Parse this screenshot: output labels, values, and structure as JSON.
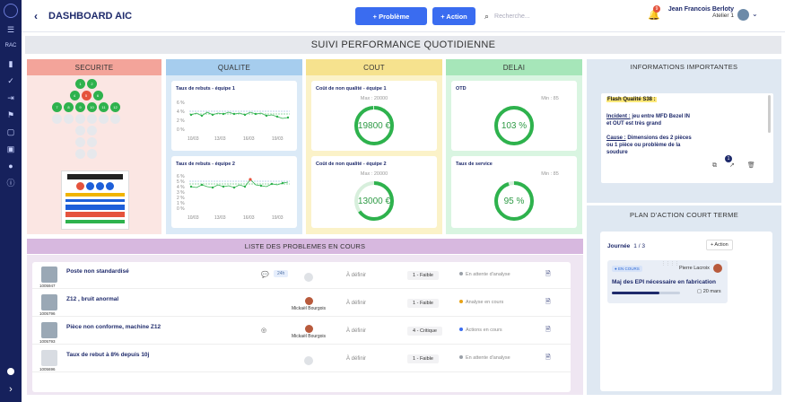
{
  "sidebar": {
    "items": [
      "menu",
      "RAC",
      "chart",
      "check",
      "login",
      "grid",
      "flag",
      "calendar",
      "calendar-check",
      "user",
      "info"
    ]
  },
  "topbar": {
    "back": "‹",
    "title": "DASHBOARD AIC",
    "btn_probleme": "+ Problème",
    "btn_action": "+ Action",
    "search_placeholder": "Recherche...",
    "notif_count": "9",
    "user_name": "Jean Francois Berloty",
    "user_sub": "Atelier 1"
  },
  "header": "SUIVI PERFORMANCE QUOTIDIENNE",
  "columns": {
    "securite": "SECURITE",
    "qualite": "QUALITE",
    "cout": "COUT",
    "delai": "DELAI"
  },
  "securite": {
    "grid_rows": [
      [
        "1",
        "2"
      ],
      [
        "4",
        "5",
        "6"
      ],
      [
        "7",
        "8",
        "9",
        "10",
        "11",
        "12"
      ],
      [
        "14",
        "15",
        "16",
        "17",
        "18",
        "19"
      ],
      [
        "21",
        "22"
      ],
      [
        "25",
        "26"
      ],
      [
        "28",
        "29"
      ]
    ]
  },
  "qualite": {
    "cards": [
      {
        "title": "Taux de rebuts - équipe 1",
        "yticks": [
          "6 %",
          "4 %",
          "2 %",
          "0 %"
        ],
        "xticks": [
          "10/03",
          "13/03",
          "16/03",
          "19/03"
        ]
      },
      {
        "title": "Taux de rebuts - équipe 2",
        "yticks": [
          "6 %",
          "5 %",
          "4 %",
          "3 %",
          "2 %",
          "1 %",
          "0 %"
        ],
        "xticks": [
          "10/03",
          "13/03",
          "16/03",
          "19/03"
        ]
      }
    ]
  },
  "cout": {
    "cards": [
      {
        "title": "Coût de non qualité - équipe 1",
        "max": "Max : 20000",
        "value": "19800 €",
        "fraction": 0.99
      },
      {
        "title": "Coût de non qualité - équipe 2",
        "max": "Max : 20000",
        "value": "13000 €",
        "fraction": 0.65
      }
    ]
  },
  "delai": {
    "cards": [
      {
        "title": "OTD",
        "min": "Min : 85",
        "value": "103 %",
        "fraction": 1
      },
      {
        "title": "Taux de service",
        "min": "Min : 85",
        "value": "95 %",
        "fraction": 0.95
      }
    ]
  },
  "problems": {
    "title": "LISTE DES PROBLEMES EN COURS",
    "rows": [
      {
        "num": "1005947",
        "title": "Poste non standardisé",
        "tag": "24h",
        "resp": "",
        "def": "À définir",
        "lvl": "1 - Faible",
        "status": "En attente d'analyse",
        "status_color": "#9aa0a8"
      },
      {
        "num": "1005796",
        "title": "Z12 , bruit anormal",
        "tag": "",
        "resp": "Mickaël Bourgois",
        "def": "À définir",
        "lvl": "1 - Faible",
        "status": "Analyse en cours",
        "status_color": "#e8a317"
      },
      {
        "num": "1005793",
        "title": "Pièce non conforme, machine Z12",
        "tag": "",
        "resp": "Mickaël Bourgois",
        "def": "À définir",
        "lvl": "4 - Critique",
        "status": "Actions en cours",
        "status_color": "#3a6cf0"
      },
      {
        "num": "1005696",
        "title": "Taux de rebut à 8% depuis 10j",
        "tag": "",
        "resp": "",
        "def": "À définir",
        "lvl": "1 - Faible",
        "status": "En attente d'analyse",
        "status_color": "#9aa0a8"
      }
    ]
  },
  "info": {
    "title": "INFORMATIONS IMPORTANTES",
    "flash": "Flash Qualité S38 :",
    "incident_label": "Incident :",
    "incident": " jeu entre MFD Bezel IN et OUT est très grand",
    "cause_label": "Cause :",
    "cause": " Dimensions des 2 pièces ou 1 pièce ou problème de la soudure",
    "badge": "1"
  },
  "plan": {
    "title": "PLAN D'ACTION COURT TERME",
    "journee": "Journée",
    "count": "1 / 3",
    "add": "+ Action",
    "status": "EN COURS",
    "person": "Pierre Lacroix",
    "task": "Maj des EPI nécessaire en fabrication",
    "date": "20 mars",
    "progress": 0.7
  }
}
